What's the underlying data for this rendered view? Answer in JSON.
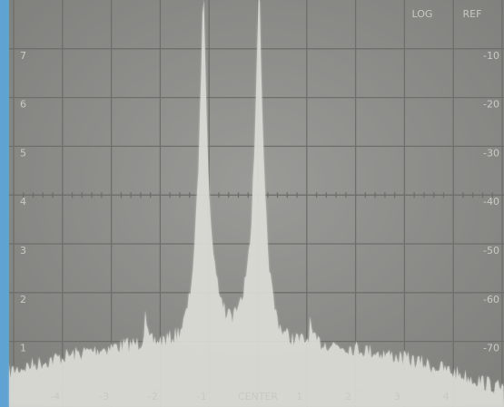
{
  "screen": {
    "mode": "LOG",
    "ref": "REF",
    "left_scale": [
      "7",
      "6",
      "5",
      "4",
      "3",
      "2",
      "1"
    ],
    "right_scale": [
      "-10",
      "-20",
      "-30",
      "-40",
      "-50",
      "-60",
      "-70"
    ],
    "center": "CENTER",
    "bottom_scale": [
      "-4",
      "-3",
      "-2",
      "-1",
      "1",
      "2",
      "3",
      "4"
    ]
  }
}
